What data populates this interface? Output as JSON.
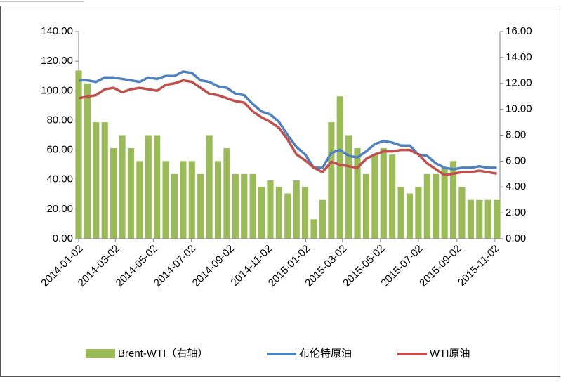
{
  "chart_data": {
    "type": "bar-line",
    "x": [
      "2014-01-02",
      "2014-01-16",
      "2014-01-30",
      "2014-02-13",
      "2014-02-27",
      "2014-03-13",
      "2014-03-27",
      "2014-04-10",
      "2014-04-24",
      "2014-05-08",
      "2014-05-22",
      "2014-06-05",
      "2014-06-19",
      "2014-07-03",
      "2014-07-17",
      "2014-07-31",
      "2014-08-14",
      "2014-08-28",
      "2014-09-11",
      "2014-09-25",
      "2014-10-09",
      "2014-10-23",
      "2014-11-06",
      "2014-11-20",
      "2014-12-04",
      "2014-12-18",
      "2015-01-01",
      "2015-01-15",
      "2015-01-29",
      "2015-02-12",
      "2015-02-26",
      "2015-03-12",
      "2015-03-26",
      "2015-04-09",
      "2015-04-23",
      "2015-05-07",
      "2015-05-21",
      "2015-06-04",
      "2015-06-18",
      "2015-07-02",
      "2015-07-16",
      "2015-07-30",
      "2015-08-13",
      "2015-08-27",
      "2015-09-10",
      "2015-09-24",
      "2015-10-08",
      "2015-10-22",
      "2015-11-05"
    ],
    "series": [
      {
        "name": "Brent-WTI（右轴）",
        "color": "#9bbb59",
        "axis": "y2",
        "kind": "bar",
        "values": [
          13,
          12,
          9,
          9,
          7,
          8,
          7,
          6,
          8,
          8,
          6,
          5,
          6,
          6,
          5,
          8,
          6,
          7,
          5,
          5,
          5,
          4,
          4.5,
          4,
          3.5,
          4.5,
          4,
          1.5,
          3,
          9,
          11,
          8,
          7,
          5,
          6.5,
          7,
          6.5,
          4,
          3.5,
          4,
          5,
          5,
          5.5,
          6,
          4,
          3,
          3,
          3,
          3
        ]
      },
      {
        "name": "布伦特原油",
        "color": "#4f81bd",
        "kind": "line",
        "values": [
          107,
          107,
          106,
          109,
          109,
          108,
          107,
          106,
          109,
          108,
          110,
          110,
          113,
          112,
          107,
          106,
          103,
          102,
          98,
          97,
          91,
          86,
          84,
          79,
          70,
          62,
          57,
          48,
          48,
          58,
          60,
          56,
          55,
          59,
          64,
          66,
          65,
          63,
          63,
          57,
          56,
          51,
          48,
          47,
          48,
          48,
          49,
          48,
          48
        ]
      },
      {
        "name": "WTI原油",
        "color": "#c0504d",
        "kind": "line",
        "values": [
          95,
          96,
          97,
          101,
          102,
          99,
          101,
          102,
          101,
          100,
          104,
          105,
          107,
          106,
          102,
          98,
          97,
          95,
          93,
          92,
          86,
          82,
          79,
          75,
          67,
          57,
          53,
          48,
          45,
          52,
          50,
          49,
          48,
          54,
          57,
          59,
          59,
          60,
          60,
          57,
          51,
          47,
          43,
          44,
          45,
          45,
          46,
          45,
          44
        ]
      }
    ],
    "xlim": [
      "2014-01-02",
      "2015-11-10"
    ],
    "xticks": [
      "2014-01-02",
      "2014-03-02",
      "2014-05-02",
      "2014-07-02",
      "2014-09-02",
      "2014-11-02",
      "2015-01-02",
      "2015-03-02",
      "2015-05-02",
      "2015-07-02",
      "2015-09-02",
      "2015-11-02"
    ],
    "ylim": [
      0,
      140
    ],
    "yticks": [
      {
        "value": 0,
        "label": "0.00"
      },
      {
        "value": 20,
        "label": "20.00"
      },
      {
        "value": 40,
        "label": "40.00"
      },
      {
        "value": 60,
        "label": "60.00"
      },
      {
        "value": 80,
        "label": "80.00"
      },
      {
        "value": 100,
        "label": "100.00"
      },
      {
        "value": 120,
        "label": "120.00"
      },
      {
        "value": 140,
        "label": "140.00"
      }
    ],
    "y2lim": [
      0,
      16
    ],
    "y2ticks": [
      {
        "value": 0,
        "label": "0.00"
      },
      {
        "value": 2,
        "label": "2.00"
      },
      {
        "value": 4,
        "label": "4.00"
      },
      {
        "value": 6,
        "label": "6.00"
      },
      {
        "value": 8,
        "label": "8.00"
      },
      {
        "value": 10,
        "label": "10.00"
      },
      {
        "value": 12,
        "label": "12.00"
      },
      {
        "value": 14,
        "label": "14.00"
      },
      {
        "value": 16,
        "label": "16.00"
      }
    ],
    "legend": "bottom"
  }
}
